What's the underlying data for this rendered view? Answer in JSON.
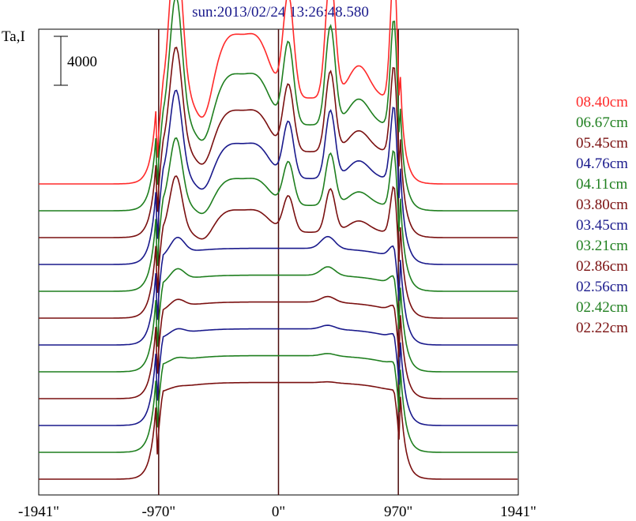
{
  "chart_data": {
    "type": "line",
    "title": "sun:2013/02/24 13:26:48.580",
    "ylabel": "Ta,I",
    "scale_bar_label": "4000",
    "x_tick_labels": [
      "-1941\"",
      "-970\"",
      "0\"",
      "970\"",
      "1941\""
    ],
    "x_ticks": [
      -1941,
      -970,
      0,
      970,
      1941
    ],
    "xlim": [
      -1941,
      1941
    ],
    "vertical_lines": [
      -970,
      0,
      970
    ],
    "series": [
      {
        "name": "08.40cm",
        "color": "#ff2a2a",
        "baseline": 6000,
        "profile": "peaked",
        "peak_scale": 1.0
      },
      {
        "name": "06.67cm",
        "color": "#1f7f1f",
        "baseline": 5500,
        "profile": "peaked",
        "peak_scale": 0.8
      },
      {
        "name": "05.45cm",
        "color": "#7a1010",
        "baseline": 5000,
        "profile": "peaked",
        "peak_scale": 0.65
      },
      {
        "name": "04.76cm",
        "color": "#1a1a8c",
        "baseline": 4500,
        "profile": "peaked",
        "peak_scale": 0.55
      },
      {
        "name": "04.11cm",
        "color": "#1f7f1f",
        "baseline": 4000,
        "profile": "peaked",
        "peak_scale": 0.42
      },
      {
        "name": "03.80cm",
        "color": "#7a1010",
        "baseline": 3500,
        "profile": "peaked",
        "peak_scale": 0.35
      },
      {
        "name": "03.45cm",
        "color": "#1a1a8c",
        "baseline": 3000,
        "profile": "flat",
        "peak_scale": 0.25
      },
      {
        "name": "03.21cm",
        "color": "#1f7f1f",
        "baseline": 2500,
        "profile": "flat",
        "peak_scale": 0.18
      },
      {
        "name": "02.86cm",
        "color": "#7a1010",
        "baseline": 2000,
        "profile": "flat",
        "peak_scale": 0.12
      },
      {
        "name": "02.56cm",
        "color": "#1a1a8c",
        "baseline": 1500,
        "profile": "flat",
        "peak_scale": 0.08
      },
      {
        "name": "02.42cm",
        "color": "#1f7f1f",
        "baseline": 1000,
        "profile": "flat",
        "peak_scale": 0.05
      },
      {
        "name": "02.22cm",
        "color": "#7a1010",
        "baseline": 500,
        "profile": "flat",
        "peak_scale": 0.02
      }
    ]
  }
}
